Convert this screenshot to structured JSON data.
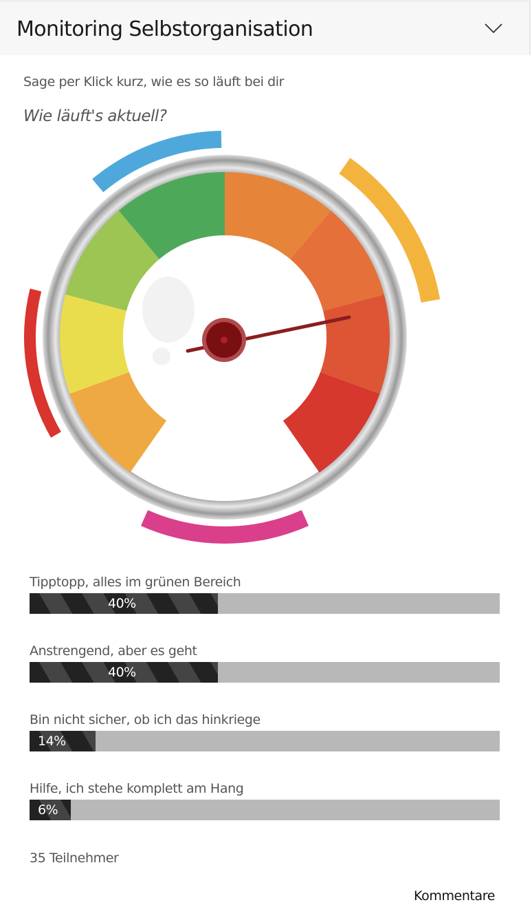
{
  "header": {
    "title": "Monitoring Selbstorganisation",
    "toggle_icon": "chevron-down-icon"
  },
  "intro": "Sage per Klick kurz, wie es so läuft bei dir",
  "question": "Wie läuft's aktuell?",
  "colors": {
    "blue": "#4ea8dc",
    "yellow": "#f3b43e",
    "red": "#d9342e",
    "pink": "#da3f8c",
    "hub": "#7a0f12"
  },
  "options": [
    {
      "label": "Tipptopp, alles im grünen Bereich",
      "percent": 40,
      "percent_label": "40%"
    },
    {
      "label": "Anstrengend, aber es geht",
      "percent": 40,
      "percent_label": "40%"
    },
    {
      "label": "Bin nicht sicher, ob ich das hinkriege",
      "percent": 14,
      "percent_label": "14%"
    },
    {
      "label": "Hilfe, ich stehe komplett am Hang",
      "percent": 6,
      "percent_label": "6%"
    }
  ],
  "participants": "35 Teilnehmer",
  "comments_link": "Kommentare"
}
